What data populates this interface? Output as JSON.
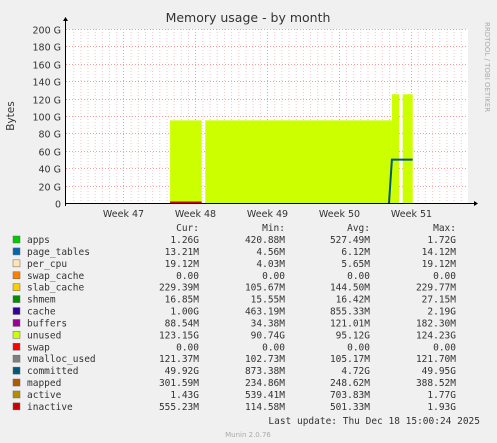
{
  "chart_data": {
    "type": "area",
    "title": "Memory usage - by month",
    "ylabel": "Bytes",
    "side_label": "RRDTOOL / TOBI OETIKER",
    "yticks": [
      "0",
      "20 G",
      "40 G",
      "60 G",
      "80 G",
      "100 G",
      "120 G",
      "140 G",
      "160 G",
      "180 G",
      "200 G"
    ],
    "ylim": [
      0,
      200
    ],
    "y_unit": "G",
    "xlim": [
      0,
      56
    ],
    "xticks": [
      {
        "label": "Week 47",
        "x": 8
      },
      {
        "label": "Week 48",
        "x": 18
      },
      {
        "label": "Week 49",
        "x": 28
      },
      {
        "label": "Week 50",
        "x": 38
      },
      {
        "label": "Week 51",
        "x": 48
      }
    ],
    "series": [
      {
        "name": "unused",
        "color": "#ccff00",
        "segments": [
          [
            [
              14.5,
              95
            ],
            [
              18.9,
              95
            ]
          ],
          [
            [
              19.4,
              95
            ],
            [
              45.4,
              95
            ]
          ],
          [
            [
              45.4,
              125
            ],
            [
              46.4,
              125
            ]
          ],
          [
            [
              46.9,
              125
            ],
            [
              48.3,
              125
            ]
          ]
        ]
      },
      {
        "name": "committed",
        "color": "#00587a",
        "segments": [
          [
            [
              45.0,
              0
            ],
            [
              45.4,
              49.9
            ],
            [
              48.3,
              49.9
            ]
          ]
        ]
      },
      {
        "name": "inactive",
        "color": "#cc0000",
        "segments": [
          [
            [
              14.5,
              0.6
            ],
            [
              18.9,
              0.6
            ]
          ]
        ]
      }
    ],
    "legend": {
      "headers": [
        "Cur:",
        "Min:",
        "Avg:",
        "Max:"
      ],
      "rows": [
        {
          "name": "apps",
          "color": "#00cc00",
          "cur": "1.26G",
          "min": "420.88M",
          "avg": "527.49M",
          "max": "1.72G"
        },
        {
          "name": "page_tables",
          "color": "#0066b3",
          "cur": "13.21M",
          "min": "4.56M",
          "avg": "6.12M",
          "max": "14.12M"
        },
        {
          "name": "per_cpu",
          "color": "#ffe5b3",
          "cur": "19.12M",
          "min": "4.03M",
          "avg": "5.65M",
          "max": "19.12M"
        },
        {
          "name": "swap_cache",
          "color": "#ff8000",
          "cur": "0.00",
          "min": "0.00",
          "avg": "0.00",
          "max": "0.00"
        },
        {
          "name": "slab_cache",
          "color": "#ffcc00",
          "cur": "229.39M",
          "min": "105.67M",
          "avg": "144.50M",
          "max": "229.77M"
        },
        {
          "name": "shmem",
          "color": "#008f00",
          "cur": "16.85M",
          "min": "15.55M",
          "avg": "16.42M",
          "max": "27.15M"
        },
        {
          "name": "cache",
          "color": "#330099",
          "cur": "1.00G",
          "min": "463.19M",
          "avg": "855.33M",
          "max": "2.19G"
        },
        {
          "name": "buffers",
          "color": "#990099",
          "cur": "88.54M",
          "min": "34.38M",
          "avg": "121.01M",
          "max": "182.30M"
        },
        {
          "name": "unused",
          "color": "#ccff00",
          "cur": "123.15G",
          "min": "90.74G",
          "avg": "95.12G",
          "max": "124.23G"
        },
        {
          "name": "swap",
          "color": "#ff0000",
          "cur": "0.00",
          "min": "0.00",
          "avg": "0.00",
          "max": "0.00"
        },
        {
          "name": "vmalloc_used",
          "color": "#808080",
          "cur": "121.37M",
          "min": "102.73M",
          "avg": "105.17M",
          "max": "121.70M"
        },
        {
          "name": "committed",
          "color": "#00587a",
          "cur": "49.92G",
          "min": "873.38M",
          "avg": "4.72G",
          "max": "49.95G"
        },
        {
          "name": "mapped",
          "color": "#b35a00",
          "cur": "301.59M",
          "min": "234.86M",
          "avg": "248.62M",
          "max": "388.52M"
        },
        {
          "name": "active",
          "color": "#b38f00",
          "cur": "1.43G",
          "min": "539.41M",
          "avg": "703.83M",
          "max": "1.77G"
        },
        {
          "name": "inactive",
          "color": "#cc0000",
          "cur": "555.23M",
          "min": "114.58M",
          "avg": "501.33M",
          "max": "1.93G"
        }
      ]
    },
    "last_update": "Last update: Thu Dec 18 15:00:24 2025",
    "footer": "Munin 2.0.76"
  }
}
